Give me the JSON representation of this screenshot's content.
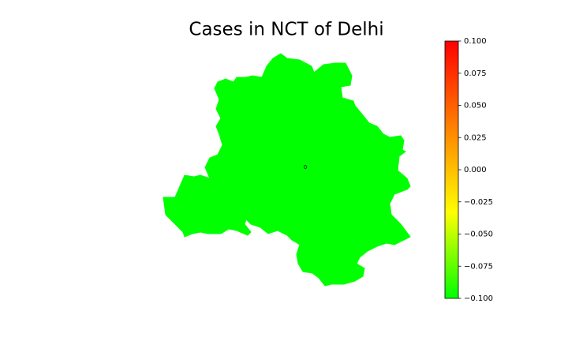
{
  "chart_data": {
    "type": "choropleth",
    "title": "Cases in NCT of Delhi",
    "values": [
      0
    ],
    "region_color": "#00ff00",
    "colormap": [
      "#00ff00",
      "#ffff00",
      "#ff8000",
      "#ff0000"
    ],
    "ylim": [
      -0.1,
      0.1
    ],
    "yticks": [
      {
        "value": -0.1,
        "label": "−0.100"
      },
      {
        "value": -0.075,
        "label": "−0.075"
      },
      {
        "value": -0.05,
        "label": "−0.050"
      },
      {
        "value": -0.025,
        "label": "−0.025"
      },
      {
        "value": 0,
        "label": "0.000"
      },
      {
        "value": 0.025,
        "label": "0.025"
      },
      {
        "value": 0.05,
        "label": "0.050"
      },
      {
        "value": 0.075,
        "label": "0.075"
      },
      {
        "value": 0.1,
        "label": "0.100"
      }
    ]
  }
}
